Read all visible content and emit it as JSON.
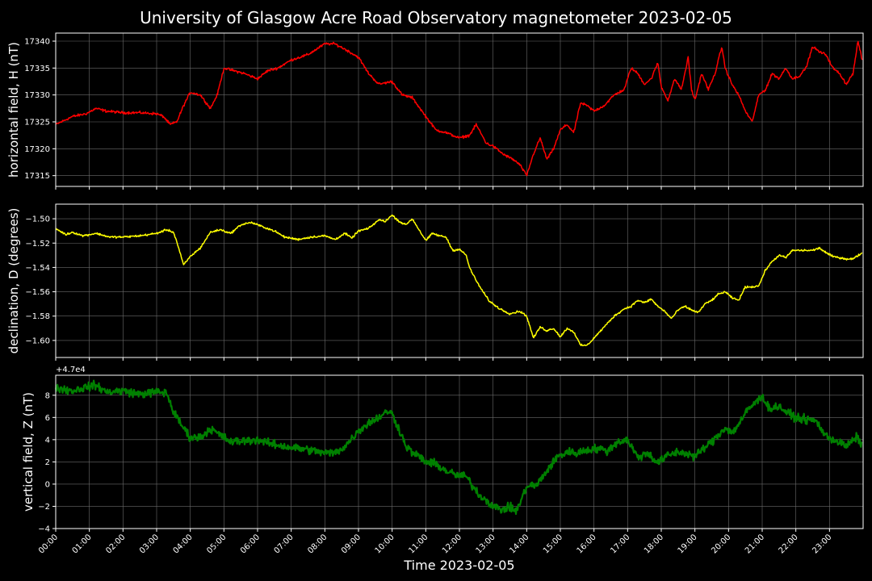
{
  "figure": {
    "title": "University of Glasgow Acre Road Observatory magnetometer 2023-02-05",
    "xlabel": "Time 2023-02-05",
    "x_ticks": [
      "00:00",
      "01:00",
      "02:00",
      "03:00",
      "04:00",
      "05:00",
      "06:00",
      "07:00",
      "08:00",
      "09:00",
      "10:00",
      "11:00",
      "12:00",
      "13:00",
      "14:00",
      "15:00",
      "16:00",
      "17:00",
      "18:00",
      "19:00",
      "20:00",
      "21:00",
      "22:00",
      "23:00"
    ],
    "background": "#000000",
    "grid_color": "#6b6b6b"
  },
  "chart_data": [
    {
      "type": "line",
      "ylabel": "horizontal field, H (nT)",
      "color": "#ff0000",
      "xlim": [
        "00:00",
        "24:00"
      ],
      "ylim": [
        17313,
        17341.5
      ],
      "y_ticks": [
        17315,
        17320,
        17325,
        17330,
        17335,
        17340
      ],
      "y_tick_labels": [
        "17315",
        "17320",
        "17325",
        "17330",
        "17335",
        "17340"
      ],
      "grid": true,
      "noise": 0.35,
      "x_hours": [
        0,
        0.5,
        0.9,
        1.2,
        1.5,
        2,
        2.5,
        3,
        3.2,
        3.4,
        3.6,
        3.8,
        4,
        4.3,
        4.6,
        4.8,
        5,
        5.3,
        5.6,
        6,
        6.3,
        6.6,
        7,
        7.5,
        8,
        8.3,
        8.6,
        9,
        9.3,
        9.6,
        10,
        10.3,
        10.6,
        11,
        11.3,
        11.6,
        12,
        12.3,
        12.5,
        12.8,
        13,
        13.3,
        13.6,
        13.8,
        14,
        14.2,
        14.4,
        14.6,
        14.8,
        15,
        15.2,
        15.4,
        15.6,
        15.8,
        16,
        16.3,
        16.6,
        16.9,
        17.1,
        17.3,
        17.5,
        17.7,
        17.9,
        18,
        18.2,
        18.4,
        18.6,
        18.8,
        18.9,
        19,
        19.2,
        19.4,
        19.6,
        19.8,
        19.9,
        20.1,
        20.3,
        20.5,
        20.7,
        20.9,
        21.1,
        21.3,
        21.5,
        21.7,
        21.9,
        22.1,
        22.3,
        22.5,
        22.7,
        22.9,
        23.1,
        23.3,
        23.5,
        23.7,
        23.85,
        23.97
      ],
      "values": [
        17324.5,
        17326,
        17326.5,
        17327.5,
        17327,
        17326.7,
        17326.7,
        17326.5,
        17326,
        17324.5,
        17325,
        17328,
        17330.5,
        17330,
        17327.5,
        17330,
        17335,
        17334.5,
        17334,
        17333,
        17334.5,
        17335,
        17336.5,
        17337.5,
        17339.5,
        17339.5,
        17338.5,
        17337,
        17334,
        17332,
        17332.5,
        17330,
        17329.5,
        17326,
        17323.5,
        17323,
        17322,
        17322.5,
        17324.5,
        17321,
        17320.5,
        17319,
        17318,
        17317,
        17315,
        17319,
        17322,
        17318,
        17320,
        17323.5,
        17324.5,
        17323,
        17328.5,
        17328,
        17327,
        17328,
        17330,
        17331,
        17335,
        17334,
        17332,
        17333,
        17336,
        17331.5,
        17329,
        17333,
        17331,
        17337,
        17331,
        17329,
        17334,
        17331,
        17334,
        17339,
        17335,
        17332,
        17330,
        17327,
        17325,
        17330,
        17331,
        17334,
        17333,
        17335,
        17333,
        17333.5,
        17335,
        17339,
        17338,
        17337.5,
        17335,
        17334,
        17332,
        17334,
        17340,
        17336.5
      ]
    },
    {
      "type": "line",
      "ylabel": "declination, D (degrees)",
      "color": "#ffff00",
      "xlim": [
        "00:00",
        "24:00"
      ],
      "ylim": [
        -1.614,
        -1.488
      ],
      "y_ticks": [
        -1.6,
        -1.58,
        -1.56,
        -1.54,
        -1.52,
        -1.5
      ],
      "y_tick_labels": [
        "−1.60",
        "−1.58",
        "−1.56",
        "−1.54",
        "−1.52",
        "−1.50"
      ],
      "grid": true,
      "noise": 0.0012,
      "x_hours": [
        0,
        0.3,
        0.5,
        0.8,
        1.2,
        1.6,
        2,
        2.5,
        3,
        3.3,
        3.5,
        3.6,
        3.8,
        4,
        4.3,
        4.6,
        4.9,
        5.2,
        5.5,
        5.8,
        6.1,
        6.5,
        6.8,
        7.2,
        7.6,
        8,
        8.3,
        8.6,
        8.8,
        9,
        9.3,
        9.6,
        9.8,
        10,
        10.2,
        10.4,
        10.6,
        10.8,
        11,
        11.2,
        11.4,
        11.6,
        11.8,
        12,
        12.2,
        12.3,
        12.5,
        12.7,
        12.9,
        13.2,
        13.5,
        13.8,
        14,
        14.2,
        14.4,
        14.6,
        14.8,
        15,
        15.2,
        15.4,
        15.6,
        15.8,
        16,
        16.3,
        16.6,
        16.9,
        17.1,
        17.3,
        17.5,
        17.7,
        17.9,
        18.1,
        18.3,
        18.5,
        18.7,
        18.9,
        19.1,
        19.3,
        19.5,
        19.7,
        19.9,
        20.1,
        20.3,
        20.5,
        20.7,
        20.9,
        21.1,
        21.3,
        21.5,
        21.7,
        21.9,
        22.1,
        22.3,
        22.5,
        22.7,
        22.9,
        23.1,
        23.3,
        23.5,
        23.7,
        23.97
      ],
      "values": [
        -1.508,
        -1.513,
        -1.511,
        -1.514,
        -1.512,
        -1.515,
        -1.515,
        -1.514,
        -1.512,
        -1.509,
        -1.511,
        -1.519,
        -1.538,
        -1.531,
        -1.524,
        -1.511,
        -1.509,
        -1.512,
        -1.505,
        -1.503,
        -1.506,
        -1.51,
        -1.515,
        -1.517,
        -1.515,
        -1.514,
        -1.517,
        -1.512,
        -1.516,
        -1.51,
        -1.508,
        -1.501,
        -1.502,
        -1.497,
        -1.502,
        -1.505,
        -1.5,
        -1.509,
        -1.518,
        -1.512,
        -1.514,
        -1.515,
        -1.526,
        -1.525,
        -1.53,
        -1.54,
        -1.551,
        -1.56,
        -1.568,
        -1.574,
        -1.578,
        -1.576,
        -1.58,
        -1.598,
        -1.589,
        -1.592,
        -1.59,
        -1.597,
        -1.59,
        -1.593,
        -1.604,
        -1.604,
        -1.598,
        -1.589,
        -1.58,
        -1.574,
        -1.572,
        -1.567,
        -1.569,
        -1.566,
        -1.572,
        -1.576,
        -1.582,
        -1.575,
        -1.572,
        -1.575,
        -1.577,
        -1.57,
        -1.567,
        -1.562,
        -1.56,
        -1.565,
        -1.567,
        -1.556,
        -1.556,
        -1.555,
        -1.542,
        -1.535,
        -1.53,
        -1.532,
        -1.526,
        -1.526,
        -1.526,
        -1.526,
        -1.524,
        -1.528,
        -1.531,
        -1.532,
        -1.533,
        -1.533,
        -1.528
      ]
    },
    {
      "type": "line",
      "ylabel": "vertical field, Z (nT)",
      "color": "#008000",
      "offset_label": "+4.7e4",
      "xlim": [
        "00:00",
        "24:00"
      ],
      "ylim": [
        -4,
        9.8
      ],
      "y_ticks": [
        -4,
        -2,
        0,
        2,
        4,
        6,
        8
      ],
      "y_tick_labels": [
        "−4",
        "−2",
        "0",
        "2",
        "4",
        "6",
        "8"
      ],
      "grid": true,
      "noise": 0.55,
      "x_hours": [
        0,
        0.5,
        1,
        1.2,
        1.5,
        2,
        2.5,
        3,
        3.3,
        3.5,
        3.7,
        4,
        4.3,
        4.6,
        4.9,
        5.2,
        5.6,
        6,
        6.3,
        6.6,
        7,
        7.5,
        8,
        8.3,
        8.6,
        9,
        9.3,
        9.6,
        9.9,
        10,
        10.2,
        10.4,
        10.6,
        10.8,
        11,
        11.3,
        11.6,
        11.9,
        12.2,
        12.4,
        12.6,
        12.9,
        13.2,
        13.5,
        13.7,
        13.9,
        14,
        14.3,
        14.6,
        14.9,
        15.2,
        15.5,
        15.8,
        16.1,
        16.4,
        16.7,
        17,
        17.3,
        17.6,
        17.9,
        18.2,
        18.5,
        18.8,
        19,
        19.3,
        19.6,
        19.9,
        20.1,
        20.3,
        20.6,
        20.9,
        21,
        21.2,
        21.5,
        21.8,
        22,
        22.3,
        22.6,
        22.9,
        23.2,
        23.5,
        23.8,
        23.97
      ],
      "values": [
        8.7,
        8.4,
        8.8,
        8.9,
        8.3,
        8.4,
        8.1,
        8.3,
        8.2,
        6.5,
        5.5,
        4.2,
        4.2,
        5,
        4.4,
        3.8,
        3.9,
        4,
        3.7,
        3.5,
        3.3,
        3.1,
        2.8,
        2.8,
        3.4,
        4.8,
        5.5,
        6,
        6.6,
        6.3,
        5,
        3.5,
        2.8,
        2.5,
        2,
        1.8,
        1.2,
        0.8,
        0.7,
        -0.2,
        -1,
        -1.7,
        -2.3,
        -2.1,
        -2.4,
        -1,
        -0.2,
        -0.1,
        1.2,
        2.4,
        2.9,
        2.8,
        3.1,
        3.2,
        3,
        3.8,
        4,
        2.4,
        2.8,
        1.9,
        2.6,
        2.9,
        2.7,
        2.5,
        3.3,
        4.1,
        5.1,
        4.6,
        5.4,
        6.8,
        7.6,
        8,
        6.8,
        7,
        6.3,
        6,
        5.8,
        5.7,
        4.3,
        3.9,
        3.4,
        4.2,
        3.6
      ]
    }
  ]
}
